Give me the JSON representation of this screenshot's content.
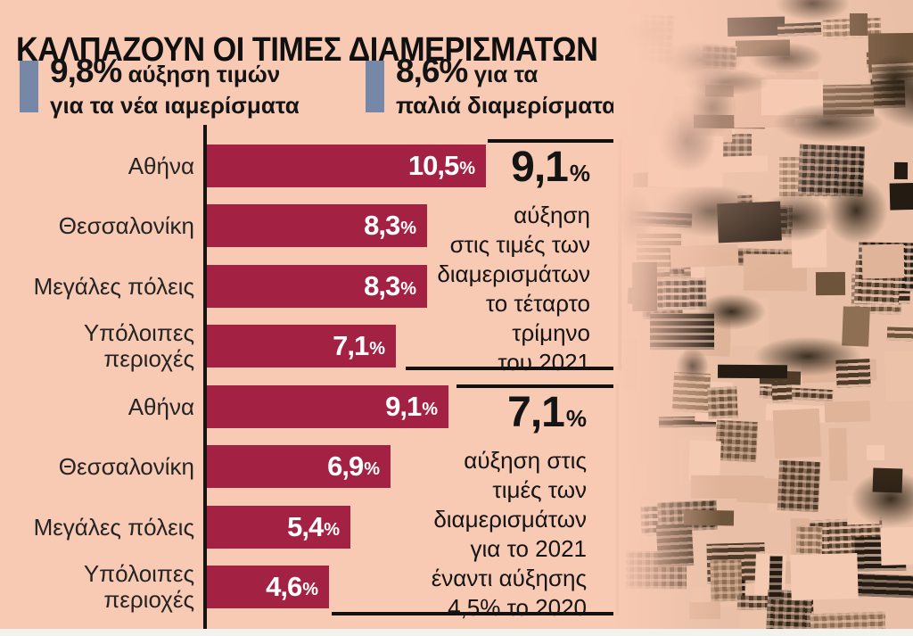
{
  "title": "ΚΑΛΠΑΖΟΥΝ ΟΙ ΤΙΜΕΣ ΔΙΑΜΕΡΙΣΜΑΤΩΝ",
  "legend": {
    "marker_color": "#7787a7",
    "items": [
      {
        "value": "9,8%",
        "line1_rest": "αύξηση τιμών",
        "line2": "για τα νέα ιαμερίσματα"
      },
      {
        "value": "8,6%",
        "line1_rest": "για τα",
        "line2": "παλιά διαμερίσματα"
      }
    ]
  },
  "chart_data": {
    "type": "bar",
    "orientation": "horizontal",
    "unit": "%",
    "bar_color": "#a32142",
    "axis_color": "#141414",
    "background_color": "#f8c9b3",
    "x_range": [
      0,
      10.5
    ],
    "groups": [
      {
        "bars": [
          {
            "label_lines": [
              "Αθήνα"
            ],
            "value": 10.5,
            "display": "10,5"
          },
          {
            "label_lines": [
              "Θεσσαλονίκη"
            ],
            "value": 8.3,
            "display": "8,3"
          },
          {
            "label_lines": [
              "Μεγάλες πόλεις"
            ],
            "value": 8.3,
            "display": "8,3"
          },
          {
            "label_lines": [
              "Υπόλοιπες",
              "περιοχές"
            ],
            "value": 7.1,
            "display": "7,1"
          }
        ],
        "annotation": {
          "value": "9,1",
          "unit": "%",
          "lines": [
            "αύξηση",
            "στις τιμές των",
            "διαμερισμάτων",
            "το τέταρτο",
            "τρίμηνο",
            "του 2021"
          ]
        }
      },
      {
        "bars": [
          {
            "label_lines": [
              "Αθήνα"
            ],
            "value": 9.1,
            "display": "9,1"
          },
          {
            "label_lines": [
              "Θεσσαλονίκη"
            ],
            "value": 6.9,
            "display": "6,9"
          },
          {
            "label_lines": [
              "Μεγάλες πόλεις"
            ],
            "value": 5.4,
            "display": "5,4"
          },
          {
            "label_lines": [
              "Υπόλοιπες",
              "περιοχές"
            ],
            "value": 4.6,
            "display": "4,6"
          }
        ],
        "annotation": {
          "value": "7,1",
          "unit": "%",
          "lines": [
            "αύξηση στις",
            "τιμές των",
            "διαμερισμάτων",
            "για το 2021",
            "έναντι αύξησης",
            "4,5% το 2020"
          ]
        }
      }
    ]
  }
}
